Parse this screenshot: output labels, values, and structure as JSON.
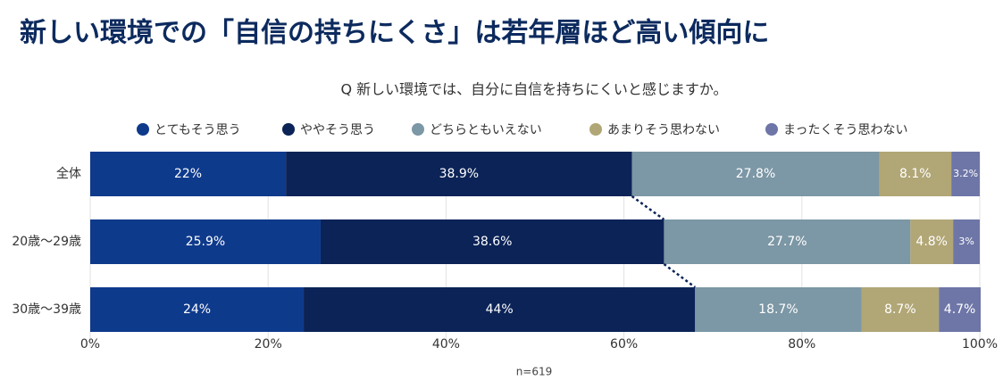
{
  "chart_data": {
    "type": "stacked-bar-horizontal",
    "title": "新しい環境での「自信の持ちにくさ」は若年層ほど高い傾向に",
    "subtitle": "Q 新しい環境では、自分に自信を持ちにくいと感じますか。",
    "note": "n=619",
    "categories": [
      "全体",
      "20歳〜29歳",
      "30歳〜39歳"
    ],
    "series": [
      {
        "name": "とてもそう思う",
        "color": "#0e3a8c",
        "values": [
          22,
          25.9,
          24
        ],
        "value_labels": [
          "22%",
          "25.9%",
          "24%"
        ]
      },
      {
        "name": "ややそう思う",
        "color": "#0b2357",
        "values": [
          38.9,
          38.6,
          44
        ],
        "value_labels": [
          "38.9%",
          "38.6%",
          "44%"
        ]
      },
      {
        "name": "どちらともいえない",
        "color": "#7c97a5",
        "values": [
          27.8,
          27.7,
          18.7
        ],
        "value_labels": [
          "27.8%",
          "27.7%",
          "18.7%"
        ]
      },
      {
        "name": "あまりそう思わない",
        "color": "#b1a676",
        "values": [
          8.1,
          4.8,
          8.7
        ],
        "value_labels": [
          "8.1%",
          "4.8%",
          "8.7%"
        ]
      },
      {
        "name": "まったくそう思わない",
        "color": "#6e76a7",
        "values": [
          3.2,
          3,
          4.7
        ],
        "value_labels": [
          "3.2%",
          "3%",
          "4.7%"
        ]
      }
    ],
    "xlim": [
      0,
      100
    ],
    "xticks": [
      {
        "value": 0,
        "label": "0%"
      },
      {
        "value": 20,
        "label": "20%"
      },
      {
        "value": 40,
        "label": "40%"
      },
      {
        "value": 60,
        "label": "60%"
      },
      {
        "value": 80,
        "label": "80%"
      },
      {
        "value": 100,
        "label": "100%"
      }
    ],
    "grid": true
  }
}
